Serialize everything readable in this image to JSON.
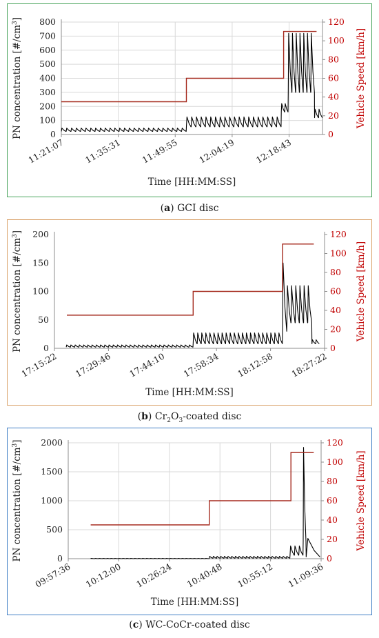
{
  "chart_data": [
    {
      "type": "line",
      "panel_label": "a",
      "caption_text": "GCI disc",
      "border_color": "#46a35a",
      "xlabel": "Time [HH:MM:SS]",
      "ylabel_pre": "PN concentration [#/cm",
      "ylabel_sup": "3",
      "ylabel_post": "]",
      "y2label": "Vehicle Speed [km/h]",
      "ylim": [
        0,
        800
      ],
      "y_ticks": [
        0,
        100,
        200,
        300,
        400,
        500,
        600,
        700,
        800
      ],
      "y2lim": [
        0,
        120
      ],
      "y2_ticks": [
        0,
        20,
        40,
        60,
        80,
        100,
        120
      ],
      "x_range": [
        "11:21:07",
        "12:27:10"
      ],
      "x_ticks": [
        "11:21:07",
        "11:35:31",
        "11:49:55",
        "12:04:19",
        "12:18:43"
      ],
      "grid": true,
      "series": [
        {
          "axis": "left",
          "color": "#000000",
          "segments": [
            {
              "from": "11:21:07",
              "to": "11:52:45",
              "base": 22,
              "peak": 45,
              "n": 26
            },
            {
              "from": "11:52:45",
              "to": "12:16:45",
              "base": 55,
              "peak": 125,
              "n": 20
            },
            {
              "from": "12:16:45",
              "to": "12:18:30",
              "base": 160,
              "peak": 220,
              "n": 2
            },
            {
              "from": "12:18:30",
              "to": "12:25:10",
              "base": 300,
              "peak": 720,
              "n": 7
            },
            {
              "from": "12:25:10",
              "to": "12:27:10",
              "base": 120,
              "peak": 180,
              "n": 2
            }
          ]
        },
        {
          "axis": "right",
          "color": "#a52a1e",
          "steps": [
            {
              "from": "11:21:07",
              "to": "11:52:45",
              "value": 35
            },
            {
              "from": "11:52:45",
              "to": "12:17:20",
              "value": 60
            },
            {
              "from": "12:17:20",
              "to": "12:25:40",
              "value": 110
            }
          ]
        }
      ]
    },
    {
      "type": "line",
      "panel_label": "b",
      "caption_text": "-coated disc",
      "caption_chem": "Cr",
      "caption_sub1": "2",
      "caption_mid": "O",
      "caption_sub2": "3",
      "border_color": "#d9a26a",
      "xlabel": "Time [HH:MM:SS]",
      "ylabel_pre": "PN concentration [#/cm",
      "ylabel_sup": "3",
      "ylabel_post": "]",
      "y2label": "Vehicle Speed [km/h]",
      "ylim": [
        0,
        200
      ],
      "y_ticks": [
        0,
        50,
        100,
        150,
        200
      ],
      "y2lim": [
        0,
        120
      ],
      "y2_ticks": [
        0,
        20,
        40,
        60,
        80,
        100,
        120
      ],
      "x_range": [
        "17:15:22",
        "18:27:22"
      ],
      "x_ticks": [
        "17:15:22",
        "17:29:46",
        "17:44:10",
        "17:58:34",
        "18:12:58",
        "18:27:22"
      ],
      "grid": false,
      "series": [
        {
          "axis": "left",
          "color": "#000000",
          "segments": [
            {
              "from": "17:18:30",
              "to": "17:52:20",
              "base": 2,
              "peak": 6,
              "n": 30
            },
            {
              "from": "17:52:20",
              "to": "18:16:10",
              "base": 8,
              "peak": 27,
              "n": 22
            },
            {
              "from": "18:16:10",
              "to": "18:17:20",
              "base": 30,
              "peak": 150,
              "n": 1
            },
            {
              "from": "18:17:20",
              "to": "18:24:00",
              "base": 45,
              "peak": 110,
              "n": 6
            },
            {
              "from": "18:24:00",
              "to": "18:26:00",
              "base": 8,
              "peak": 15,
              "n": 2
            }
          ]
        },
        {
          "axis": "right",
          "color": "#a52a1e",
          "steps": [
            {
              "from": "17:18:40",
              "to": "17:52:20",
              "value": 35
            },
            {
              "from": "17:52:20",
              "to": "18:16:10",
              "value": 60
            },
            {
              "from": "18:16:10",
              "to": "18:24:30",
              "value": 110
            }
          ]
        }
      ]
    },
    {
      "type": "line",
      "panel_label": "c",
      "caption_text": "WC-CoCr-coated disc",
      "border_color": "#3f7ec4",
      "xlabel": "Time [HH:MM:SS]",
      "ylabel_pre": "PN concentration [#/cm",
      "ylabel_sup": "3",
      "ylabel_post": "]",
      "y2label": "Vehicle Speed [km/h]",
      "ylim": [
        0,
        2000
      ],
      "y_ticks": [
        0,
        500,
        1000,
        1500,
        2000
      ],
      "y2lim": [
        0,
        120
      ],
      "y2_ticks": [
        0,
        20,
        40,
        60,
        80,
        100,
        120
      ],
      "x_range": [
        "09:57:36",
        "11:09:36"
      ],
      "x_ticks": [
        "09:57:36",
        "10:12:00",
        "10:26:24",
        "10:40:48",
        "10:55:12",
        "11:09:36"
      ],
      "grid": true,
      "series": [
        {
          "axis": "left",
          "color": "#000000",
          "segments": [
            {
              "from": "10:04:00",
              "to": "10:37:45",
              "base": 0,
              "peak": 6,
              "n": 30
            },
            {
              "from": "10:37:45",
              "to": "11:00:45",
              "base": 8,
              "peak": 40,
              "n": 22
            },
            {
              "from": "11:00:45",
              "to": "11:04:30",
              "base": 60,
              "peak": 220,
              "n": 3
            },
            {
              "from": "11:04:30",
              "to": "11:05:20",
              "base": 300,
              "peak": 1920,
              "n": 1
            },
            {
              "from": "11:05:20",
              "to": "11:09:30",
              "base": 30,
              "peak": 350,
              "n": 1
            }
          ]
        },
        {
          "axis": "right",
          "color": "#a52a1e",
          "steps": [
            {
              "from": "10:04:00",
              "to": "10:37:45",
              "value": 35
            },
            {
              "from": "10:37:45",
              "to": "11:01:00",
              "value": 60
            },
            {
              "from": "11:01:00",
              "to": "11:07:30",
              "value": 110
            }
          ]
        }
      ]
    }
  ]
}
